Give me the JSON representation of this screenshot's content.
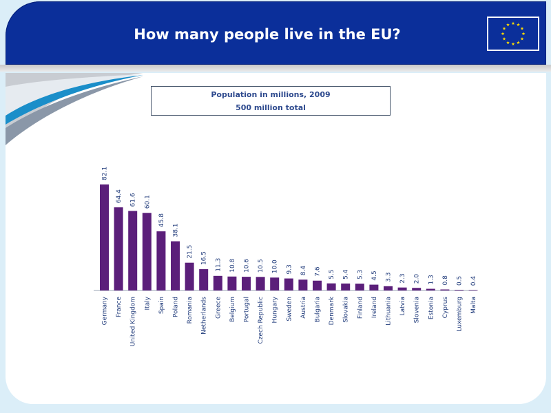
{
  "slide": {
    "title": "How many people live in the EU?"
  },
  "legend": {
    "line1": "Population in millions, 2009",
    "line2": "500 million total"
  },
  "flag": {
    "icon": "eu-flag-icon",
    "background": "#0b2f9a",
    "star_color": "#ffdd00"
  },
  "chart_data": {
    "type": "bar",
    "bar_color": "#5b1f7a",
    "categories": [
      "Germany",
      "France",
      "United Kingdom",
      "Italy",
      "Spain",
      "Poland",
      "Romania",
      "Netherlands",
      "Greece",
      "Belgium",
      "Portugal",
      "Czech Republic",
      "Hungary",
      "Sweden",
      "Austria",
      "Bulgaria",
      "Denmark",
      "Slovakia",
      "Finland",
      "Ireland",
      "Lithuania",
      "Latvia",
      "Slovenia",
      "Estonia",
      "Cyprus",
      "Luxemburg",
      "Malta"
    ],
    "values": [
      82.1,
      64.4,
      61.6,
      60.1,
      45.8,
      38.1,
      21.5,
      16.5,
      11.3,
      10.8,
      10.6,
      10.5,
      10.0,
      9.3,
      8.4,
      7.6,
      5.5,
      5.4,
      5.3,
      4.5,
      3.3,
      2.3,
      2.0,
      1.3,
      0.8,
      0.5,
      0.4
    ],
    "value_labels": [
      "82.1",
      "64.4",
      "61.6",
      "60.1",
      "45.8",
      "38.1",
      "21.5",
      "16.5",
      "11.3",
      "10.8",
      "10.6",
      "10.5",
      "10.0",
      "9.3",
      "8.4",
      "7.6",
      "5.5",
      "5.4",
      "5.3",
      "4.5",
      "3.3",
      "2.3",
      "2.0",
      "1.3",
      "0.8",
      "0.5",
      "0.4"
    ],
    "title": "",
    "xlabel": "",
    "ylabel": "",
    "ylim": [
      0,
      82.1
    ],
    "grid": false
  }
}
